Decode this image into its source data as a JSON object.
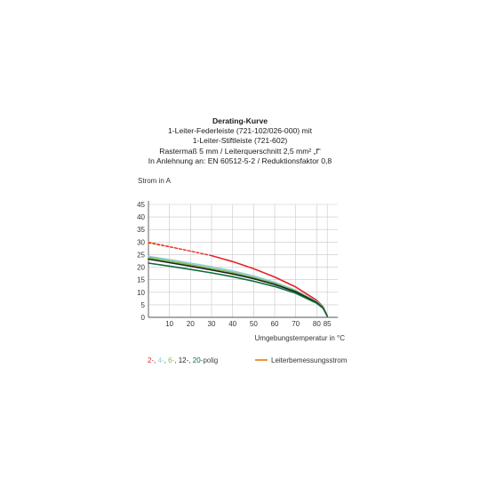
{
  "title_lines": [
    "Derating-Kurve",
    "1-Leiter-Federleiste (721-102/026-000) mit",
    "1-Leiter-Stiftleiste (721-602)",
    "Rastermaß 5 mm / Leiterquerschnitt 2,5 mm² „f“",
    "In Anlehnung an: EN 60512-5-2 / Reduktionsfaktor 0,8"
  ],
  "chart_data": {
    "type": "line",
    "ylabel": "Strom in A",
    "xlabel": "Umgebungstemperatur in °C",
    "xlim": [
      0,
      90
    ],
    "ylim": [
      0,
      45
    ],
    "x_ticks": [
      "10",
      "20",
      "30",
      "40",
      "50",
      "60",
      "70",
      "80",
      "85"
    ],
    "y_ticks": [
      "0",
      "5",
      "10",
      "15",
      "20",
      "25",
      "30",
      "35",
      "40",
      "45"
    ],
    "grid": true,
    "series": [
      {
        "name": "Leiterbemessungsstrom",
        "color": "#f07800",
        "style": "dashed",
        "x": [
          0,
          30
        ],
        "y": [
          30,
          24.6
        ]
      },
      {
        "name": "2-",
        "color": "#e8232a",
        "style": "dashed",
        "x": [
          0,
          10,
          20,
          30
        ],
        "y": [
          29.7,
          28.1,
          26.4,
          24.6
        ]
      },
      {
        "name": "2-",
        "color": "#e8232a",
        "style": "solid",
        "x": [
          30,
          40,
          50,
          60,
          70,
          80,
          83,
          85
        ],
        "y": [
          24.6,
          22.2,
          19.4,
          16.1,
          12.1,
          6.8,
          4.2,
          0.5
        ]
      },
      {
        "name": "4-",
        "color": "#8fc9dd",
        "style": "solid",
        "x": [
          0,
          10,
          20,
          30,
          40,
          50,
          60,
          70,
          80,
          83,
          85
        ],
        "y": [
          24.3,
          23.0,
          21.6,
          20.2,
          18.5,
          16.5,
          14.0,
          10.8,
          6.3,
          4.0,
          0.5
        ]
      },
      {
        "name": "6-",
        "color": "#7cbe4a",
        "style": "solid",
        "x": [
          0,
          10,
          20,
          30,
          40,
          50,
          60,
          70,
          80,
          83,
          85
        ],
        "y": [
          23.8,
          22.4,
          21.0,
          19.5,
          17.9,
          15.9,
          13.5,
          10.5,
          6.1,
          3.9,
          0.5
        ]
      },
      {
        "name": "12-",
        "color": "#1f1f1f",
        "style": "solid",
        "x": [
          0,
          10,
          20,
          30,
          40,
          50,
          60,
          70,
          80,
          83,
          85
        ],
        "y": [
          23.2,
          21.8,
          20.4,
          18.9,
          17.3,
          15.4,
          13.1,
          10.2,
          5.9,
          3.8,
          0.5
        ]
      },
      {
        "name": "20-",
        "color": "#0f6b3e",
        "style": "solid",
        "x": [
          0,
          10,
          20,
          30,
          40,
          50,
          60,
          70,
          80,
          83,
          85
        ],
        "y": [
          21.6,
          20.4,
          19.1,
          17.7,
          16.2,
          14.4,
          12.3,
          9.6,
          5.6,
          3.6,
          0.5
        ]
      }
    ]
  },
  "legend": {
    "poles": [
      {
        "text": "2-",
        "color": "#e8232a"
      },
      {
        "text": ", ",
        "color": "#444444"
      },
      {
        "text": "4-",
        "color": "#8fc9dd"
      },
      {
        "text": ", ",
        "color": "#444444"
      },
      {
        "text": "6-",
        "color": "#7cbe4a"
      },
      {
        "text": ", ",
        "color": "#444444"
      },
      {
        "text": "12-",
        "color": "#1f1f1f"
      },
      {
        "text": ", ",
        "color": "#444444"
      },
      {
        "text": "20-",
        "color": "#0f6b3e"
      },
      {
        "text": "polig",
        "color": "#444444"
      }
    ],
    "rated_label": "Leiterbemessungsstrom",
    "rated_color": "#f07800"
  }
}
